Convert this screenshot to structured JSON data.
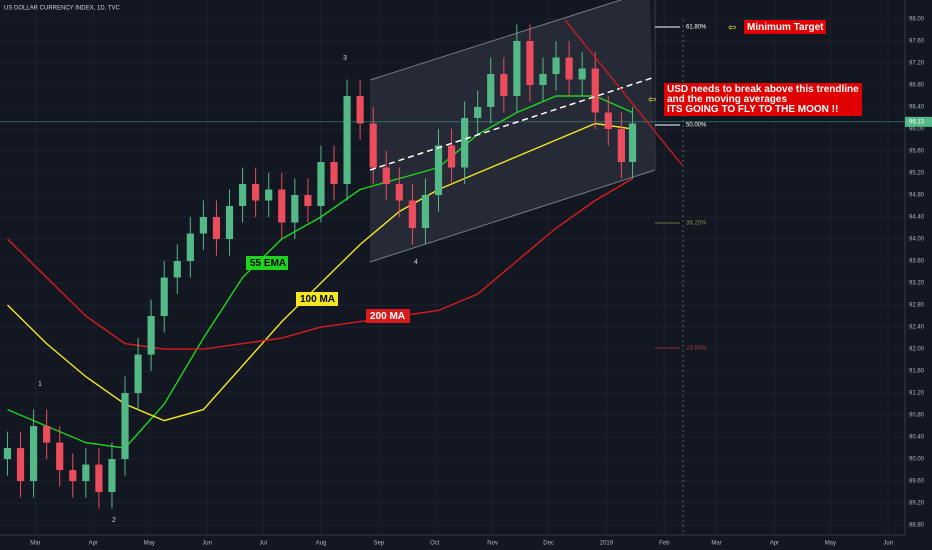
{
  "chart_data": {
    "type": "candlestick",
    "title": "US DOLLAR CURRENCY INDEX, 1D, TVC",
    "x": [
      0,
      7,
      14,
      21,
      28,
      35,
      42,
      49,
      56,
      63,
      70,
      77,
      84,
      91,
      98,
      105,
      112,
      119,
      126,
      133,
      140,
      147,
      154,
      161,
      168,
      175,
      182,
      189,
      196,
      203,
      210,
      217,
      224,
      231,
      238,
      245,
      252,
      259,
      266,
      273,
      280,
      287,
      294,
      301,
      308,
      315,
      322,
      329,
      335
    ],
    "open": [
      90.0,
      90.2,
      89.6,
      90.6,
      90.3,
      89.8,
      89.6,
      89.9,
      89.4,
      90.0,
      91.2,
      91.9,
      92.6,
      93.3,
      93.6,
      94.1,
      94.4,
      94.0,
      94.6,
      95.0,
      94.7,
      94.9,
      94.3,
      94.8,
      94.6,
      95.4,
      95.0,
      96.6,
      96.1,
      95.3,
      95.0,
      94.7,
      94.2,
      94.8,
      95.7,
      95.3,
      96.2,
      96.4,
      97.0,
      96.6,
      97.6,
      96.8,
      97.0,
      97.3,
      96.9,
      97.1,
      96.3,
      96.0,
      95.4
    ],
    "high": [
      90.5,
      90.5,
      90.9,
      90.9,
      90.6,
      90.1,
      90.2,
      90.2,
      90.3,
      91.5,
      92.2,
      92.9,
      93.6,
      93.9,
      94.4,
      94.7,
      94.7,
      94.9,
      95.3,
      95.3,
      95.2,
      95.2,
      95.1,
      95.1,
      95.7,
      95.7,
      96.9,
      96.9,
      96.4,
      95.6,
      95.3,
      95.0,
      95.1,
      96.0,
      96.0,
      96.5,
      96.7,
      97.3,
      97.3,
      97.9,
      97.9,
      97.3,
      97.6,
      97.6,
      97.4,
      97.4,
      96.6,
      96.3,
      96.4
    ],
    "low": [
      89.7,
      89.3,
      89.3,
      90.0,
      89.5,
      89.3,
      89.3,
      89.1,
      89.1,
      89.7,
      90.9,
      91.6,
      92.3,
      93.0,
      93.3,
      93.8,
      93.7,
      93.7,
      94.3,
      94.4,
      94.4,
      94.0,
      94.0,
      94.3,
      94.3,
      94.7,
      94.7,
      95.8,
      95.0,
      94.7,
      94.4,
      93.9,
      93.9,
      94.5,
      95.0,
      95.0,
      95.9,
      96.1,
      96.3,
      96.3,
      96.5,
      96.5,
      96.7,
      96.6,
      96.6,
      96.0,
      95.7,
      95.1,
      95.1
    ],
    "close": [
      90.2,
      89.6,
      90.6,
      90.3,
      89.8,
      89.6,
      89.9,
      89.4,
      90.0,
      91.2,
      91.9,
      92.6,
      93.3,
      93.6,
      94.1,
      94.4,
      94.0,
      94.6,
      95.0,
      94.7,
      94.9,
      94.3,
      94.8,
      94.6,
      95.4,
      95.0,
      96.6,
      96.1,
      95.3,
      95.0,
      94.7,
      94.2,
      94.8,
      95.7,
      95.3,
      96.2,
      96.4,
      97.0,
      96.6,
      97.6,
      96.8,
      97.0,
      97.3,
      96.9,
      97.1,
      96.3,
      96.0,
      95.4,
      96.1
    ],
    "up_color": "#53b987",
    "down_color": "#eb4d5c",
    "series": [
      {
        "name": "55 EMA",
        "color": "#1ed41e",
        "x": [
          0,
          21,
          42,
          63,
          84,
          105,
          126,
          147,
          168,
          189,
          210,
          231,
          252,
          273,
          294,
          315,
          335
        ],
        "values": [
          90.9,
          90.6,
          90.3,
          90.2,
          91.0,
          92.2,
          93.3,
          94.0,
          94.4,
          94.9,
          95.1,
          95.3,
          95.9,
          96.3,
          96.6,
          96.6,
          96.3
        ]
      },
      {
        "name": "100 MA",
        "color": "#f4e623",
        "x": [
          0,
          21,
          42,
          63,
          84,
          105,
          126,
          147,
          168,
          189,
          210,
          231,
          252,
          273,
          294,
          315,
          335
        ],
        "values": [
          92.8,
          92.1,
          91.5,
          91.0,
          90.7,
          90.9,
          91.7,
          92.5,
          93.2,
          93.9,
          94.5,
          94.9,
          95.2,
          95.5,
          95.8,
          96.1,
          96.0
        ]
      },
      {
        "name": "200 MA",
        "color": "#d91c1c",
        "x": [
          0,
          21,
          42,
          63,
          84,
          105,
          126,
          147,
          168,
          189,
          210,
          231,
          252,
          273,
          294,
          315,
          335
        ],
        "values": [
          94.0,
          93.3,
          92.6,
          92.1,
          92.0,
          92.0,
          92.1,
          92.2,
          92.4,
          92.5,
          92.6,
          92.7,
          93.0,
          93.6,
          94.2,
          94.7,
          95.1
        ]
      }
    ],
    "xlim": [
      -4,
      481
    ],
    "ylim": [
      88.62,
      98.345
    ],
    "xticks": [
      {
        "value": 15,
        "label": "Mar"
      },
      {
        "value": 46,
        "label": "Apr"
      },
      {
        "value": 76,
        "label": "May"
      },
      {
        "value": 107,
        "label": "Jun"
      },
      {
        "value": 137,
        "label": "Jul"
      },
      {
        "value": 168,
        "label": "Aug"
      },
      {
        "value": 199,
        "label": "Sep"
      },
      {
        "value": 229,
        "label": "Oct"
      },
      {
        "value": 260,
        "label": "Nov"
      },
      {
        "value": 290,
        "label": "Dec"
      },
      {
        "value": 321,
        "label": "2019"
      },
      {
        "value": 352,
        "label": "Feb"
      },
      {
        "value": 380,
        "label": "Mar"
      },
      {
        "value": 411,
        "label": "Apr"
      },
      {
        "value": 441,
        "label": "May"
      },
      {
        "value": 472,
        "label": "Jun"
      }
    ],
    "yticks": [
      {
        "value": 88.8,
        "label": "88.80"
      },
      {
        "value": 89.2,
        "label": "89.20"
      },
      {
        "value": 89.6,
        "label": "89.60"
      },
      {
        "value": 90.0,
        "label": "90.00"
      },
      {
        "value": 90.4,
        "label": "90.40"
      },
      {
        "value": 90.8,
        "label": "90.80"
      },
      {
        "value": 91.2,
        "label": "91.20"
      },
      {
        "value": 91.6,
        "label": "91.60"
      },
      {
        "value": 92.0,
        "label": "92.00"
      },
      {
        "value": 92.4,
        "label": "92.40"
      },
      {
        "value": 92.8,
        "label": "92.80"
      },
      {
        "value": 93.2,
        "label": "93.20"
      },
      {
        "value": 93.6,
        "label": "93.60"
      },
      {
        "value": 94.0,
        "label": "94.00"
      },
      {
        "value": 94.4,
        "label": "94.40"
      },
      {
        "value": 94.8,
        "label": "94.80"
      },
      {
        "value": 95.2,
        "label": "95.20"
      },
      {
        "value": 95.6,
        "label": "95.60"
      },
      {
        "value": 96.0,
        "label": "96.00"
      },
      {
        "value": 96.4,
        "label": "96.40"
      },
      {
        "value": 96.8,
        "label": "96.80"
      },
      {
        "value": 97.2,
        "label": "97.20"
      },
      {
        "value": 97.6,
        "label": "97.60"
      },
      {
        "value": 98.0,
        "label": "98.00"
      }
    ],
    "last_price": 96.13,
    "grid": true,
    "fib_labels": [
      "61.80%",
      "50.00%",
      "38.20%",
      "23.60%"
    ],
    "wave_labels": [
      "1",
      "2",
      "3",
      "4"
    ],
    "annotations": {
      "target": "Minimum Target",
      "callout": [
        "USD needs to break above this trendline",
        "and the moving averages",
        "ITS GOING TO FLY TO THE MOON !!"
      ]
    }
  }
}
